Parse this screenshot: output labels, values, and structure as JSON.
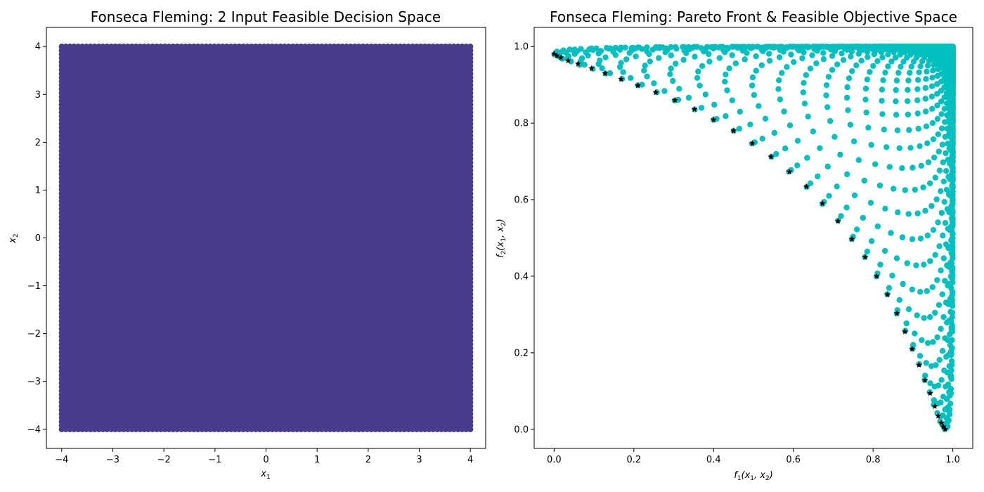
{
  "chart_data": [
    {
      "type": "scatter",
      "title": "Fonseca Fleming: 2 Input Feasible Decision Space",
      "xlabel": "x1",
      "ylabel": "x2",
      "xlim": [
        -4.3,
        4.3
      ],
      "ylim": [
        -4.4,
        4.4
      ],
      "xticks": [
        -4,
        -3,
        -2,
        -1,
        0,
        1,
        2,
        3,
        4
      ],
      "yticks": [
        -4,
        -3,
        -2,
        -1,
        0,
        1,
        2,
        3,
        4
      ],
      "xtick_labels": [
        "−4",
        "−3",
        "−2",
        "−1",
        "0",
        "1",
        "2",
        "3",
        "4"
      ],
      "ytick_labels": [
        "−4",
        "−3",
        "−2",
        "−1",
        "0",
        "1",
        "2",
        "3",
        "4"
      ],
      "grid": false,
      "series": [
        {
          "marker": "circle",
          "color": "#483d8b",
          "x_range": [
            -4,
            4
          ],
          "y_range": [
            -4,
            4
          ],
          "grid_points_per_axis": 100
        }
      ]
    },
    {
      "type": "scatter",
      "title": "Fonseca Fleming: Pareto Front & Feasible Objective Space",
      "xlabel": "f1(x1, x2)",
      "ylabel": "f2(x1, x2)",
      "xlim": [
        -0.05,
        1.05
      ],
      "ylim": [
        -0.05,
        1.05
      ],
      "xticks": [
        0.0,
        0.2,
        0.4,
        0.6,
        0.8,
        1.0
      ],
      "yticks": [
        0.0,
        0.2,
        0.4,
        0.6,
        0.8,
        1.0
      ],
      "xtick_labels": [
        "0.0",
        "0.2",
        "0.4",
        "0.6",
        "0.8",
        "1.0"
      ],
      "ytick_labels": [
        "0.0",
        "0.2",
        "0.4",
        "0.6",
        "0.8",
        "1.0"
      ],
      "grid": false,
      "series": [
        {
          "marker": "circle",
          "color": "#00bfbf",
          "function": "fonseca-fleming",
          "x_range": [
            -4,
            4
          ],
          "y_range": [
            -4,
            4
          ],
          "grid_points_per_axis": 100
        },
        {
          "marker": "star",
          "color": "#000000",
          "points": [
            [
              0.0,
              0.981
            ],
            [
              0.007,
              0.976
            ],
            [
              0.017,
              0.971
            ],
            [
              0.035,
              0.963
            ],
            [
              0.06,
              0.955
            ],
            [
              0.094,
              0.943
            ],
            [
              0.128,
              0.93
            ],
            [
              0.168,
              0.915
            ],
            [
              0.21,
              0.898
            ],
            [
              0.255,
              0.88
            ],
            [
              0.303,
              0.86
            ],
            [
              0.352,
              0.836
            ],
            [
              0.4,
              0.809
            ],
            [
              0.45,
              0.78
            ],
            [
              0.497,
              0.747
            ],
            [
              0.544,
              0.712
            ],
            [
              0.59,
              0.673
            ],
            [
              0.633,
              0.634
            ],
            [
              0.673,
              0.59
            ],
            [
              0.712,
              0.544
            ],
            [
              0.747,
              0.497
            ],
            [
              0.78,
              0.45
            ],
            [
              0.809,
              0.4
            ],
            [
              0.836,
              0.352
            ],
            [
              0.86,
              0.303
            ],
            [
              0.88,
              0.255
            ],
            [
              0.898,
              0.21
            ],
            [
              0.915,
              0.168
            ],
            [
              0.93,
              0.128
            ],
            [
              0.943,
              0.094
            ],
            [
              0.955,
              0.06
            ],
            [
              0.963,
              0.035
            ],
            [
              0.971,
              0.017
            ],
            [
              0.976,
              0.007
            ],
            [
              0.981,
              0.0
            ]
          ]
        }
      ]
    }
  ]
}
